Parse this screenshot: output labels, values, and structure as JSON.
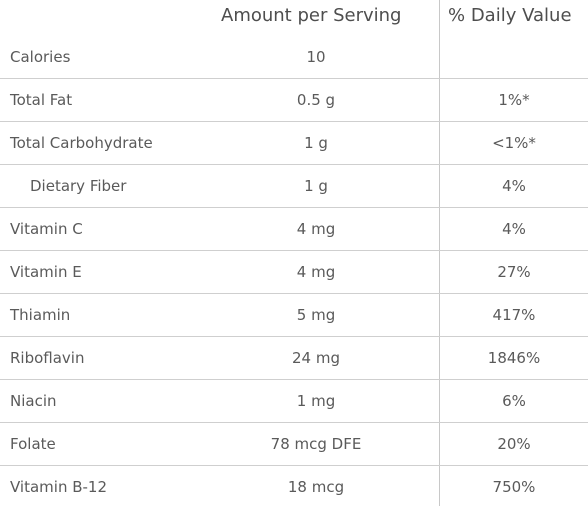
{
  "header": {
    "amount_label": "Amount per Serving",
    "dv_label": "% Daily Value"
  },
  "rows": [
    {
      "nutrient": "Calories",
      "amount": "10",
      "dv": ""
    },
    {
      "nutrient": "Total Fat",
      "amount": "0.5 g",
      "dv": "1%*"
    },
    {
      "nutrient": "Total Carbohydrate",
      "amount": "1 g",
      "dv": "<1%*"
    },
    {
      "nutrient": "Dietary Fiber",
      "amount": "1 g",
      "dv": "4%"
    },
    {
      "nutrient": "Vitamin C",
      "amount": "4 mg",
      "dv": "4%"
    },
    {
      "nutrient": "Vitamin E",
      "amount": "4 mg",
      "dv": "27%"
    },
    {
      "nutrient": "Thiamin",
      "amount": "5 mg",
      "dv": "417%"
    },
    {
      "nutrient": "Riboflavin",
      "amount": "24 mg",
      "dv": "1846%"
    },
    {
      "nutrient": "Niacin",
      "amount": "1 mg",
      "dv": "6%"
    },
    {
      "nutrient": "Folate",
      "amount": "78 mcg DFE",
      "dv": "20%"
    },
    {
      "nutrient": "Vitamin B-12",
      "amount": "18 mcg",
      "dv": "750%"
    }
  ]
}
